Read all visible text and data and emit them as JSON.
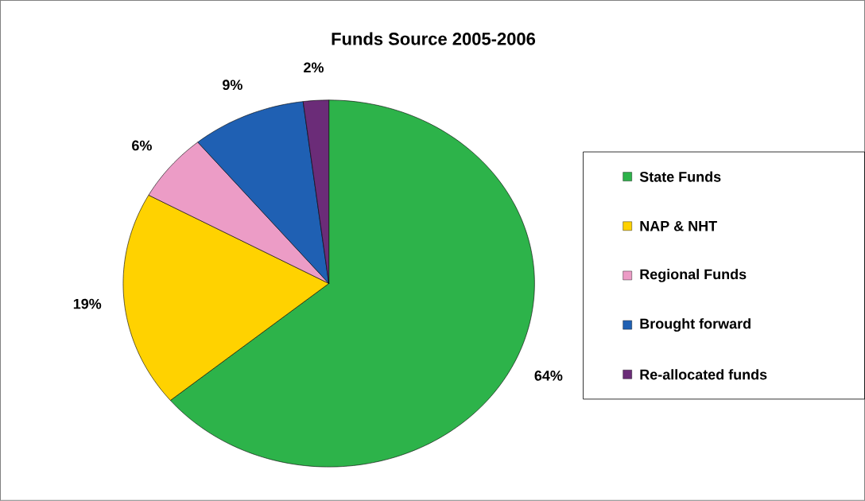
{
  "chart_data": {
    "type": "pie",
    "title": "Funds Source 2005-2006",
    "categories": [
      "State Funds",
      "NAP & NHT",
      "Regional Funds",
      "Brought forward",
      "Re-allocated funds"
    ],
    "values": [
      64,
      19,
      6,
      9,
      2
    ],
    "colors": [
      "#2db34a",
      "#ffd200",
      "#ec9cc6",
      "#1f60b3",
      "#6b2c78"
    ],
    "value_labels": [
      "64%",
      "19%",
      "6%",
      "9%",
      "2%"
    ],
    "legend": "right"
  }
}
